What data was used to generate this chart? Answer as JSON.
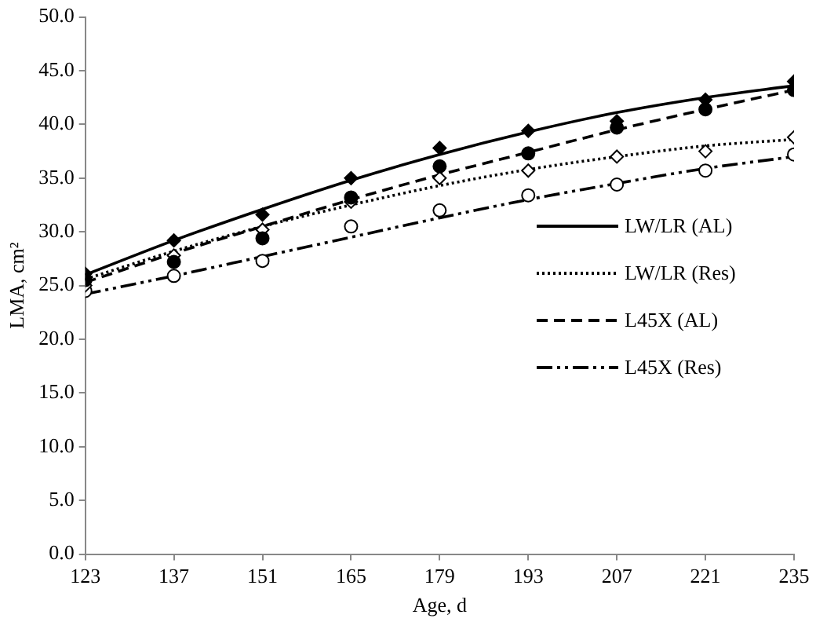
{
  "chart_data": {
    "type": "scatter",
    "xlabel": "Age, d",
    "ylabel": "LMA, cm²",
    "xlim": [
      123,
      235
    ],
    "xticks": [
      123,
      137,
      151,
      165,
      179,
      193,
      207,
      221,
      235
    ],
    "ylim": [
      0,
      50
    ],
    "yticks": [
      {
        "value": 0,
        "label": "0.0"
      },
      {
        "value": 5,
        "label": "5.0"
      },
      {
        "value": 10,
        "label": "10.0"
      },
      {
        "value": 15,
        "label": "15.0"
      },
      {
        "value": 20,
        "label": "20.0"
      },
      {
        "value": 25,
        "label": "25.0"
      },
      {
        "value": 30,
        "label": "30.0"
      },
      {
        "value": 35,
        "label": "35.0"
      },
      {
        "value": 40,
        "label": "40.0"
      },
      {
        "value": 45,
        "label": "45.0"
      },
      {
        "value": 50,
        "label": "50.0"
      }
    ],
    "grid": false,
    "legend": "right",
    "x": [
      123,
      137,
      151,
      165,
      179,
      193,
      207,
      221,
      235
    ],
    "series": [
      {
        "type": "scatter",
        "marker": "diamond",
        "color": "#000000",
        "values": [
          26.1,
          29.2,
          31.6,
          35.0,
          37.8,
          39.4,
          40.3,
          42.3,
          44.0
        ]
      },
      {
        "type": "scatter",
        "marker": "diamond-open",
        "color": "#000000",
        "values": [
          25.0,
          27.8,
          30.2,
          32.8,
          35.0,
          35.7,
          37.0,
          37.5,
          38.8
        ]
      },
      {
        "type": "scatter",
        "marker": "circle",
        "color": "#000000",
        "values": [
          25.5,
          27.2,
          29.4,
          33.2,
          36.1,
          37.3,
          39.7,
          41.4,
          43.2
        ]
      },
      {
        "type": "scatter",
        "marker": "circle-open",
        "color": "#000000",
        "values": [
          24.5,
          25.9,
          27.3,
          30.5,
          32.0,
          33.4,
          34.4,
          35.7,
          37.2
        ]
      },
      {
        "type": "line",
        "name": "LW/LR (AL)",
        "line_style": "solid",
        "color": "#000000",
        "values": [
          26.0,
          29.2,
          32.1,
          34.8,
          37.2,
          39.3,
          41.1,
          42.5,
          43.6
        ]
      },
      {
        "type": "line",
        "name": "LW/LR (Res)",
        "line_style": "dotted",
        "color": "#000000",
        "values": [
          25.6,
          28.2,
          30.5,
          32.5,
          34.3,
          35.8,
          37.0,
          38.0,
          38.6
        ]
      },
      {
        "type": "line",
        "name": "L45X (AL)",
        "line_style": "dashed",
        "color": "#000000",
        "values": [
          25.3,
          28.0,
          30.5,
          33.0,
          35.3,
          37.4,
          39.5,
          41.4,
          43.2
        ]
      },
      {
        "type": "line",
        "name": "L45X (Res)",
        "line_style": "dashdot",
        "color": "#000000",
        "values": [
          24.2,
          25.9,
          27.7,
          29.5,
          31.3,
          33.0,
          34.5,
          35.9,
          37.0
        ]
      }
    ]
  }
}
